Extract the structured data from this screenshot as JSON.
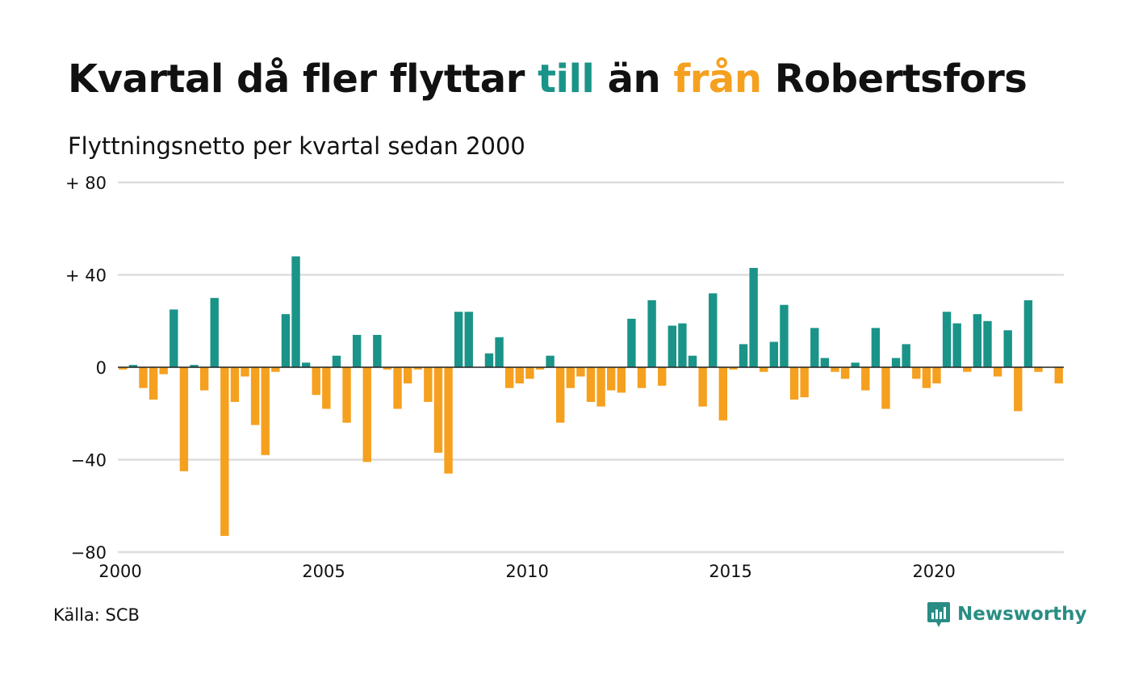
{
  "header": {
    "title_part1": "Kvartal då fler flyttar ",
    "title_pos_word": "till",
    "title_part2": " än ",
    "title_neg_word": "från",
    "title_part3": " Robertsfors",
    "subtitle": "Flyttningsnetto per kvartal sedan 2000"
  },
  "footer": {
    "source": "Källa: SCB",
    "logo_label": "Newsworthy"
  },
  "colors": {
    "positive": "#1a9488",
    "negative": "#f5a01f",
    "grid": "#dddddd",
    "zero_line": "#222222",
    "logo": "#2a8d84"
  },
  "chart_data": {
    "type": "bar",
    "x_start": "2000 Q1",
    "x_ticks": [
      {
        "value": 2000,
        "label": "2000"
      },
      {
        "value": 2005,
        "label": "2005"
      },
      {
        "value": 2010,
        "label": "2010"
      },
      {
        "value": 2015,
        "label": "2015"
      },
      {
        "value": 2020,
        "label": "2020"
      }
    ],
    "y_ticks": [
      {
        "value": 80,
        "label": "+ 80"
      },
      {
        "value": 40,
        "label": "+ 40"
      },
      {
        "value": 0,
        "label": "0"
      },
      {
        "value": -40,
        "label": "−40"
      },
      {
        "value": -80,
        "label": "−80"
      }
    ],
    "ylim": [
      -80,
      80
    ],
    "grid": true,
    "values": [
      -1,
      1,
      -9,
      -14,
      -3,
      25,
      -45,
      1,
      -10,
      30,
      -73,
      -15,
      -4,
      -25,
      -38,
      -2,
      23,
      48,
      2,
      -12,
      -18,
      5,
      -24,
      14,
      -41,
      14,
      -1,
      -18,
      -7,
      -1,
      -15,
      -37,
      -46,
      24,
      24,
      0,
      6,
      13,
      -9,
      -7,
      -5,
      -1,
      5,
      -24,
      -9,
      -4,
      -15,
      -17,
      -10,
      -11,
      21,
      -9,
      29,
      -8,
      18,
      19,
      5,
      -17,
      32,
      -23,
      -1,
      10,
      43,
      -2,
      11,
      27,
      -14,
      -13,
      17,
      4,
      -2,
      -5,
      2,
      -10,
      17,
      -18,
      4,
      10,
      -5,
      -9,
      -7,
      24,
      19,
      -2,
      23,
      20,
      -4,
      16,
      -19,
      29,
      -2,
      0,
      -7
    ]
  }
}
